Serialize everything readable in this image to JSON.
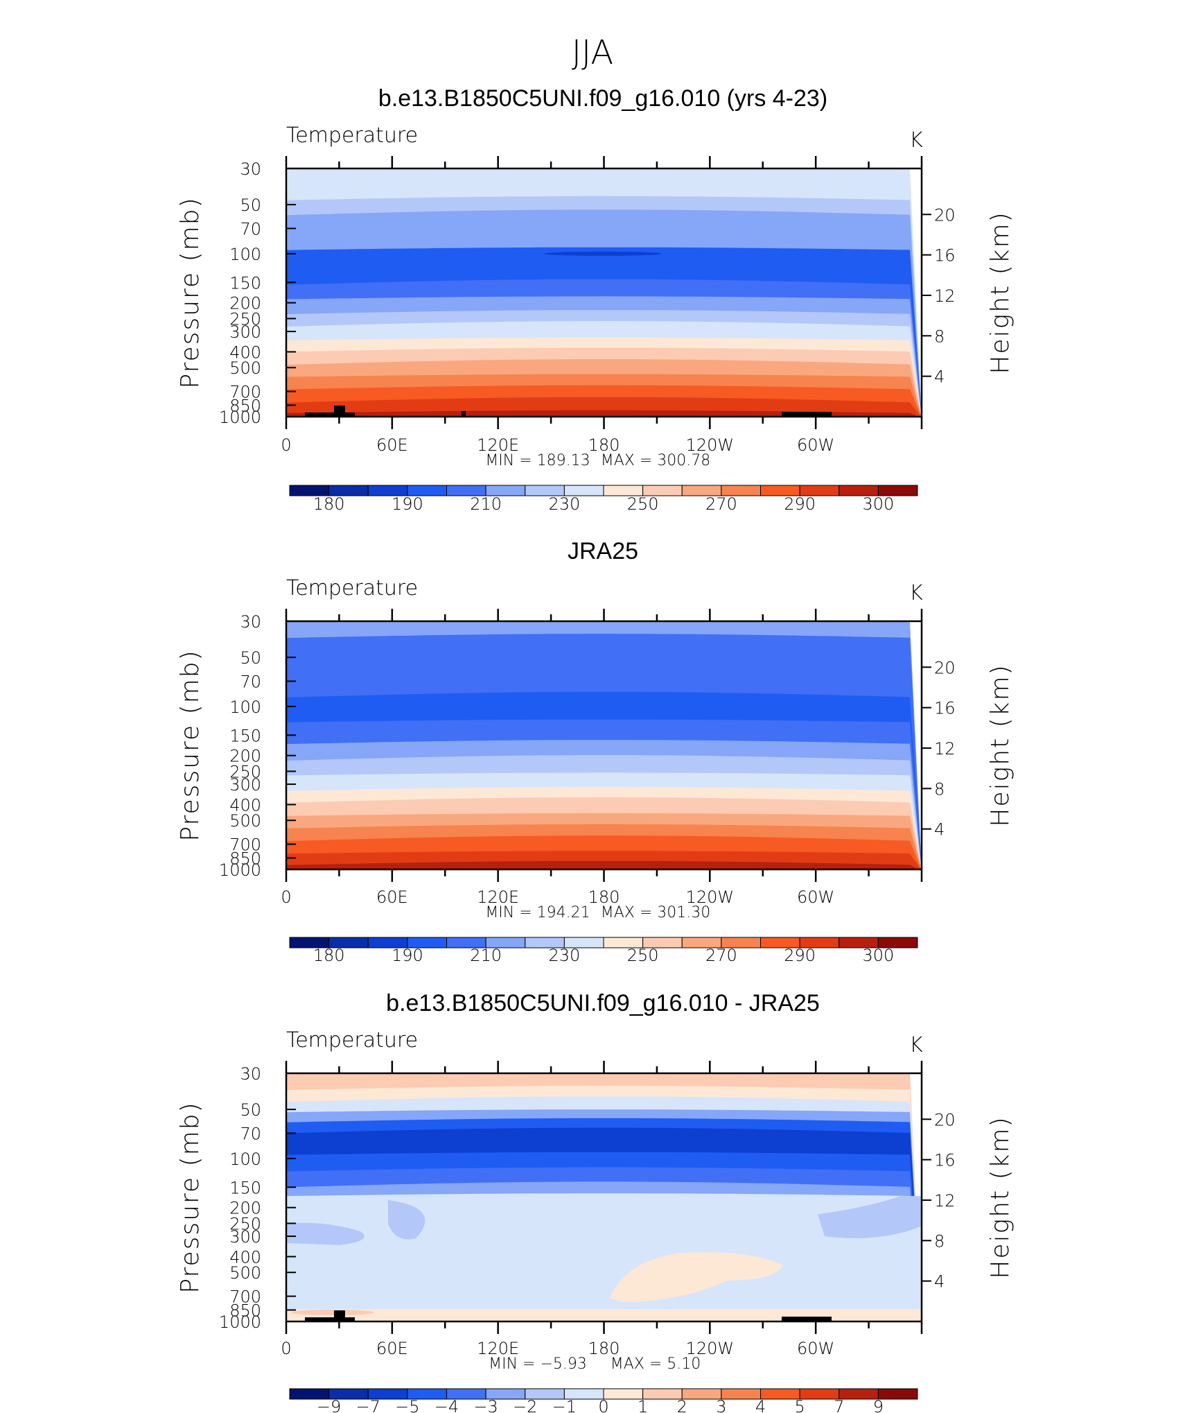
{
  "page_title": "JJA",
  "chart_data": [
    {
      "type": "heatmap",
      "title": "b.e13.B1850C5UNI.f09_g16.010 (yrs 4-23)",
      "variable": "Temperature",
      "units": "K",
      "ylabel": "Pressure (mb)",
      "y2label": "Height (km)",
      "y_ticks": [
        "30",
        "50",
        "70",
        "100",
        "150",
        "200",
        "250",
        "300",
        "400",
        "500",
        "700",
        "850",
        "1000"
      ],
      "y2_ticks": [
        "20",
        "16",
        "12",
        "8",
        "4"
      ],
      "x_ticks": [
        "0",
        "60E",
        "120E",
        "180",
        "120W",
        "60W"
      ],
      "min_label": "MIN = 189.13",
      "max_label": "MAX = 300.78",
      "min": 189.13,
      "max": 300.78,
      "colorbar_labels": [
        "180",
        "190",
        "210",
        "230",
        "250",
        "270",
        "290",
        "300"
      ],
      "colorbar_colors": [
        "#021472",
        "#0a2ea9",
        "#0d3fd1",
        "#1f5cf2",
        "#416ff5",
        "#86a6f7",
        "#b3c8f9",
        "#d6e5fa",
        "#fde8d6",
        "#fccbb3",
        "#f9a77f",
        "#f7834e",
        "#f75a22",
        "#e23c15",
        "#b8200e",
        "#8a0a08"
      ],
      "profile_bands": [
        {
          "p": 30,
          "c": 7
        },
        {
          "p": 47,
          "c": 6
        },
        {
          "p": 58,
          "c": 5
        },
        {
          "p": 95,
          "c": 3
        },
        {
          "p": 130,
          "c": 3
        },
        {
          "p": 155,
          "c": 4
        },
        {
          "p": 190,
          "c": 5
        },
        {
          "p": 235,
          "c": 6
        },
        {
          "p": 280,
          "c": 7
        },
        {
          "p": 340,
          "c": 8
        },
        {
          "p": 400,
          "c": 9
        },
        {
          "p": 480,
          "c": 10
        },
        {
          "p": 570,
          "c": 11
        },
        {
          "p": 680,
          "c": 12
        },
        {
          "p": 820,
          "c": 13
        },
        {
          "p": 950,
          "c": 14
        }
      ]
    },
    {
      "type": "heatmap",
      "title": "JRA25",
      "variable": "Temperature",
      "units": "K",
      "ylabel": "Pressure (mb)",
      "y2label": "Height (km)",
      "y_ticks": [
        "30",
        "50",
        "70",
        "100",
        "150",
        "200",
        "250",
        "300",
        "400",
        "500",
        "700",
        "850",
        "1000"
      ],
      "y2_ticks": [
        "20",
        "16",
        "12",
        "8",
        "4"
      ],
      "x_ticks": [
        "0",
        "60E",
        "120E",
        "180",
        "120W",
        "60W"
      ],
      "min_label": "MIN = 194.21",
      "max_label": "MAX = 301.30",
      "min": 194.21,
      "max": 301.3,
      "colorbar_labels": [
        "180",
        "190",
        "210",
        "230",
        "250",
        "270",
        "290",
        "300"
      ],
      "colorbar_colors": [
        "#021472",
        "#0a2ea9",
        "#0d3fd1",
        "#1f5cf2",
        "#416ff5",
        "#86a6f7",
        "#b3c8f9",
        "#d6e5fa",
        "#fde8d6",
        "#fccbb3",
        "#f9a77f",
        "#f7834e",
        "#f75a22",
        "#e23c15",
        "#b8200e",
        "#8a0a08"
      ],
      "profile_bands": [
        {
          "p": 30,
          "c": 5
        },
        {
          "p": 38,
          "c": 4
        },
        {
          "p": 88,
          "c": 3
        },
        {
          "p": 125,
          "c": 4
        },
        {
          "p": 170,
          "c": 5
        },
        {
          "p": 215,
          "c": 6
        },
        {
          "p": 265,
          "c": 7
        },
        {
          "p": 330,
          "c": 8
        },
        {
          "p": 390,
          "c": 9
        },
        {
          "p": 470,
          "c": 10
        },
        {
          "p": 560,
          "c": 11
        },
        {
          "p": 670,
          "c": 12
        },
        {
          "p": 800,
          "c": 13
        },
        {
          "p": 940,
          "c": 14
        }
      ]
    },
    {
      "type": "heatmap",
      "title": "b.e13.B1850C5UNI.f09_g16.010 - JRA25",
      "variable": "Temperature",
      "units": "K",
      "ylabel": "Pressure (mb)",
      "y2label": "Height (km)",
      "y_ticks": [
        "30",
        "50",
        "70",
        "100",
        "150",
        "200",
        "250",
        "300",
        "400",
        "500",
        "700",
        "850",
        "1000"
      ],
      "y2_ticks": [
        "20",
        "16",
        "12",
        "8",
        "4"
      ],
      "x_ticks": [
        "0",
        "60E",
        "120E",
        "180",
        "120W",
        "60W"
      ],
      "min_label": "MIN = −5.93",
      "max_label": "MAX = 5.10",
      "min": -5.93,
      "max": 5.1,
      "colorbar_labels": [
        "−9",
        "−7",
        "−5",
        "−4",
        "−3",
        "−2",
        "−1",
        "0",
        "1",
        "2",
        "3",
        "4",
        "5",
        "7",
        "9"
      ],
      "colorbar_colors": [
        "#021472",
        "#0a2ea9",
        "#0d3fd1",
        "#1f5cf2",
        "#416ff5",
        "#86a6f7",
        "#b3c8f9",
        "#d6e5fa",
        "#fde8d6",
        "#fccbb3",
        "#f9a77f",
        "#f7834e",
        "#f75a22",
        "#e23c15",
        "#b8200e",
        "#8a0a08"
      ],
      "profile_bands": [
        {
          "p": 30,
          "c": 9
        },
        {
          "p": 38,
          "c": 8
        },
        {
          "p": 45,
          "c": 7
        },
        {
          "p": 52,
          "c": 5
        },
        {
          "p": 60,
          "c": 3
        },
        {
          "p": 70,
          "c": 2
        },
        {
          "p": 95,
          "c": 3
        },
        {
          "p": 120,
          "c": 4
        },
        {
          "p": 150,
          "c": 5
        },
        {
          "p": 170,
          "c": 7
        }
      ]
    }
  ]
}
